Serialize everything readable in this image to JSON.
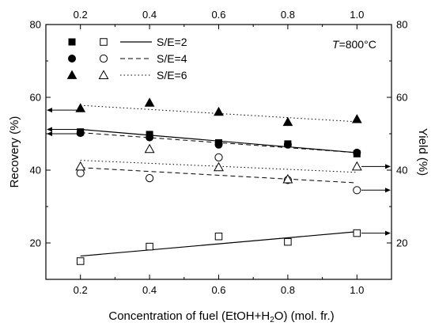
{
  "chart_data": {
    "type": "scatter",
    "title": "",
    "xlabel": "Concentration of fuel (EtOH+H2O) (mol. fr.)",
    "ylabel_left": "Recovery (%)",
    "ylabel_right": "Yield (%)",
    "xlim": [
      0.1,
      1.1
    ],
    "ylim": [
      10,
      80
    ],
    "x_ticks": [
      0.2,
      0.4,
      0.6,
      0.8,
      1.0
    ],
    "x_tick_labels": [
      "0.2",
      "0.4",
      "0.6",
      "0.8",
      "1.0"
    ],
    "y_ticks": [
      20,
      40,
      60,
      80
    ],
    "y_tick_labels": [
      "20",
      "40",
      "60",
      "80"
    ],
    "x": [
      0.2,
      0.4,
      0.6,
      0.8,
      1.0
    ],
    "annotation": "T=800°C",
    "grid": false,
    "legend_placement": "top-left",
    "legend": [
      {
        "label": "S/E=2",
        "line_style": "solid"
      },
      {
        "label": "S/E=4",
        "line_style": "dashed"
      },
      {
        "label": "S/E=6",
        "line_style": "dotted"
      }
    ],
    "series": [
      {
        "label": "S/E=2",
        "metric": "recovery",
        "marker": "filled-square",
        "line_style": "solid",
        "values": [
          50.5,
          49.8,
          47.5,
          47.2,
          44.5
        ],
        "fit": [
          51.2,
          44.8
        ]
      },
      {
        "label": "S/E=4",
        "metric": "recovery",
        "marker": "filled-circle",
        "line_style": "dashed",
        "values": [
          50.2,
          49.0,
          47.0,
          47.0,
          44.8
        ],
        "fit": [
          50.3,
          44.8
        ]
      },
      {
        "label": "S/E=6",
        "metric": "recovery",
        "marker": "filled-triangle",
        "line_style": "dotted",
        "values": [
          57.0,
          58.5,
          56.0,
          53.2,
          54.0
        ],
        "fit": [
          57.8,
          53.3
        ]
      },
      {
        "label": "S/E=2",
        "metric": "yield",
        "marker": "open-square",
        "line_style": "solid",
        "values": [
          15.0,
          19.0,
          21.8,
          20.3,
          22.7
        ],
        "fit": [
          16.4,
          23.1
        ]
      },
      {
        "label": "S/E=4",
        "metric": "yield",
        "marker": "open-circle",
        "line_style": "dashed",
        "values": [
          39.2,
          37.8,
          43.5,
          37.3,
          34.5
        ],
        "fit": [
          40.7,
          36.5
        ]
      },
      {
        "label": "S/E=6",
        "metric": "yield",
        "marker": "open-triangle",
        "line_style": "dotted",
        "values": [
          41.0,
          45.8,
          40.8,
          37.5,
          41.0
        ],
        "fit": [
          42.7,
          39.4
        ]
      }
    ],
    "arrows": [
      {
        "y": 56.5,
        "direction": "left"
      },
      {
        "y": 51.2,
        "direction": "left"
      },
      {
        "y": 50.0,
        "direction": "left"
      },
      {
        "y": 41.0,
        "direction": "right"
      },
      {
        "y": 34.5,
        "direction": "right"
      },
      {
        "y": 22.7,
        "direction": "right"
      }
    ]
  }
}
